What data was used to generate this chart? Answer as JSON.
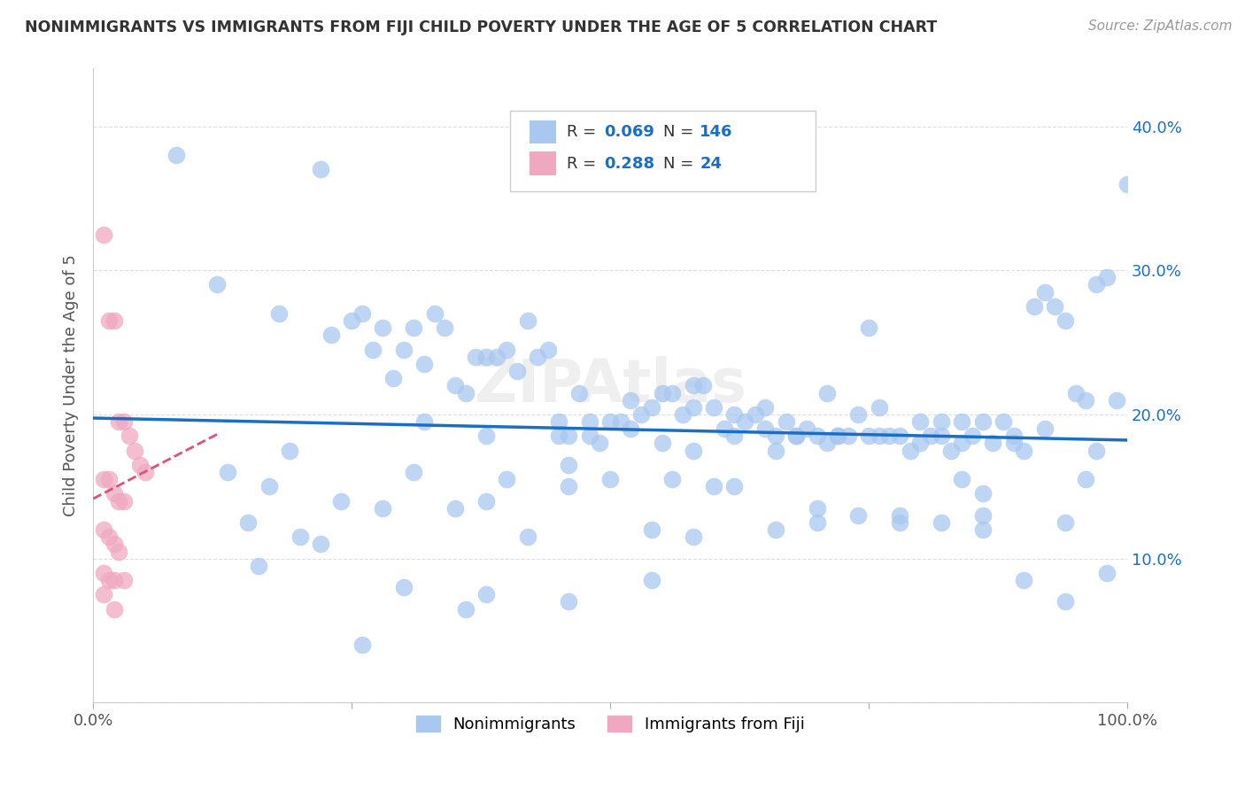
{
  "title": "NONIMMIGRANTS VS IMMIGRANTS FROM FIJI CHILD POVERTY UNDER THE AGE OF 5 CORRELATION CHART",
  "source": "Source: ZipAtlas.com",
  "ylabel": "Child Poverty Under the Age of 5",
  "xlim": [
    0,
    1
  ],
  "ylim": [
    0,
    0.44
  ],
  "yticks": [
    0.0,
    0.1,
    0.2,
    0.3,
    0.4
  ],
  "ytick_labels": [
    "",
    "10.0%",
    "20.0%",
    "30.0%",
    "40.0%"
  ],
  "nonimm_R": 0.069,
  "nonimm_N": 146,
  "imm_R": 0.288,
  "imm_N": 24,
  "nonimm_color": "#a8c8f0",
  "nonimm_line_color": "#1a6fc4",
  "imm_color": "#f0a8c0",
  "imm_line_color": "#e0507a",
  "background_color": "#ffffff",
  "nonimmigrants_x": [
    0.08,
    0.12,
    0.18,
    0.22,
    0.23,
    0.25,
    0.26,
    0.27,
    0.28,
    0.29,
    0.3,
    0.31,
    0.32,
    0.33,
    0.34,
    0.35,
    0.36,
    0.37,
    0.38,
    0.39,
    0.4,
    0.41,
    0.42,
    0.43,
    0.44,
    0.45,
    0.46,
    0.47,
    0.48,
    0.49,
    0.5,
    0.51,
    0.52,
    0.53,
    0.54,
    0.55,
    0.56,
    0.57,
    0.58,
    0.59,
    0.6,
    0.61,
    0.62,
    0.63,
    0.64,
    0.65,
    0.66,
    0.67,
    0.68,
    0.69,
    0.7,
    0.71,
    0.72,
    0.73,
    0.74,
    0.75,
    0.76,
    0.77,
    0.78,
    0.79,
    0.8,
    0.81,
    0.82,
    0.83,
    0.84,
    0.85,
    0.86,
    0.87,
    0.88,
    0.89,
    0.9,
    0.91,
    0.92,
    0.93,
    0.94,
    0.95,
    0.96,
    0.97,
    0.98,
    0.99,
    1.0,
    0.13,
    0.15,
    0.17,
    0.2,
    0.24,
    0.28,
    0.31,
    0.35,
    0.38,
    0.42,
    0.46,
    0.5,
    0.54,
    0.58,
    0.62,
    0.66,
    0.7,
    0.74,
    0.78,
    0.82,
    0.86,
    0.9,
    0.94,
    0.98,
    0.22,
    0.3,
    0.38,
    0.46,
    0.54,
    0.62,
    0.7,
    0.78,
    0.86,
    0.94,
    0.16,
    0.26,
    0.36,
    0.46,
    0.56,
    0.66,
    0.76,
    0.86,
    0.96,
    0.19,
    0.32,
    0.45,
    0.58,
    0.71,
    0.84,
    0.97,
    0.4,
    0.6,
    0.8,
    0.38,
    0.55,
    0.72,
    0.89,
    0.48,
    0.65,
    0.82,
    0.52,
    0.68,
    0.84,
    0.58,
    0.75,
    0.92
  ],
  "nonimmigrants_y": [
    0.38,
    0.29,
    0.27,
    0.37,
    0.255,
    0.265,
    0.27,
    0.245,
    0.26,
    0.225,
    0.245,
    0.26,
    0.235,
    0.27,
    0.26,
    0.22,
    0.215,
    0.24,
    0.24,
    0.24,
    0.245,
    0.23,
    0.265,
    0.24,
    0.245,
    0.185,
    0.165,
    0.215,
    0.195,
    0.18,
    0.195,
    0.195,
    0.21,
    0.2,
    0.205,
    0.215,
    0.215,
    0.2,
    0.22,
    0.22,
    0.205,
    0.19,
    0.2,
    0.195,
    0.2,
    0.205,
    0.185,
    0.195,
    0.185,
    0.19,
    0.185,
    0.18,
    0.185,
    0.185,
    0.2,
    0.26,
    0.205,
    0.185,
    0.185,
    0.175,
    0.195,
    0.185,
    0.195,
    0.175,
    0.18,
    0.185,
    0.195,
    0.18,
    0.195,
    0.18,
    0.175,
    0.275,
    0.285,
    0.275,
    0.265,
    0.215,
    0.21,
    0.29,
    0.295,
    0.21,
    0.36,
    0.16,
    0.125,
    0.15,
    0.115,
    0.14,
    0.135,
    0.16,
    0.135,
    0.14,
    0.115,
    0.15,
    0.155,
    0.12,
    0.115,
    0.185,
    0.12,
    0.125,
    0.13,
    0.125,
    0.125,
    0.12,
    0.085,
    0.125,
    0.09,
    0.11,
    0.08,
    0.075,
    0.07,
    0.085,
    0.15,
    0.135,
    0.13,
    0.13,
    0.07,
    0.095,
    0.04,
    0.065,
    0.185,
    0.155,
    0.175,
    0.185,
    0.145,
    0.155,
    0.175,
    0.195,
    0.195,
    0.205,
    0.215,
    0.155,
    0.175,
    0.155,
    0.15,
    0.18,
    0.185,
    0.18,
    0.185,
    0.185,
    0.185,
    0.19,
    0.185,
    0.19,
    0.185,
    0.195,
    0.175,
    0.185,
    0.19
  ],
  "immigrants_x": [
    0.01,
    0.015,
    0.02,
    0.025,
    0.03,
    0.035,
    0.04,
    0.045,
    0.05,
    0.01,
    0.015,
    0.02,
    0.025,
    0.03,
    0.01,
    0.015,
    0.02,
    0.025,
    0.01,
    0.015,
    0.02,
    0.03,
    0.01,
    0.02
  ],
  "immigrants_y": [
    0.325,
    0.265,
    0.265,
    0.195,
    0.195,
    0.185,
    0.175,
    0.165,
    0.16,
    0.155,
    0.155,
    0.145,
    0.14,
    0.14,
    0.12,
    0.115,
    0.11,
    0.105,
    0.09,
    0.085,
    0.085,
    0.085,
    0.075,
    0.065
  ]
}
